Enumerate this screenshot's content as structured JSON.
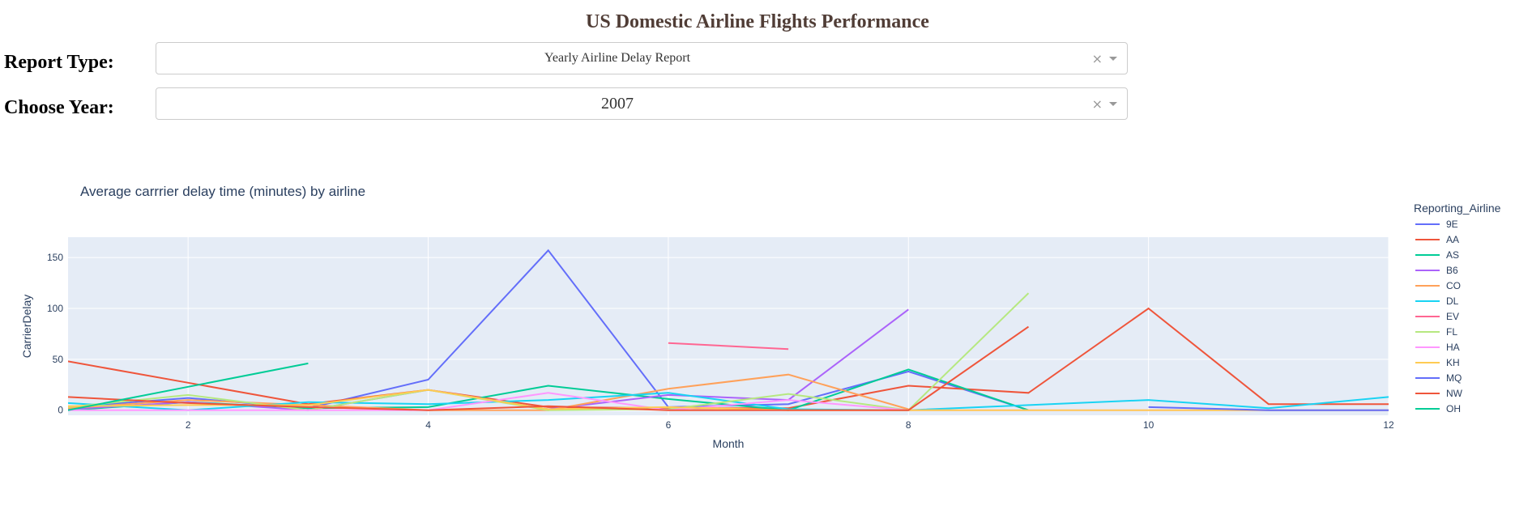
{
  "page": {
    "title": "US Domestic Airline Flights Performance"
  },
  "controls": {
    "report_type": {
      "label": "Report Type:",
      "value": "Yearly Airline Delay Report",
      "clear": "×"
    },
    "year": {
      "label": "Choose Year:",
      "value": "2007",
      "clear": "×"
    }
  },
  "chart_data": {
    "type": "line",
    "title": "Average carrrier delay time (minutes) by airline",
    "xlabel": "Month",
    "ylabel": "CarrierDelay",
    "xlim": [
      1,
      12
    ],
    "ylim": [
      -5,
      170
    ],
    "xticks": [
      2,
      4,
      6,
      8,
      10,
      12
    ],
    "yticks": [
      0,
      50,
      100,
      150
    ],
    "grid": true,
    "legend": {
      "title": "Reporting_Airline",
      "position": "right"
    },
    "series": [
      {
        "name": "9E",
        "color": "#636EFA",
        "points": [
          [
            1,
            3
          ],
          [
            2,
            12
          ],
          [
            3,
            2
          ],
          [
            4,
            30
          ],
          [
            5,
            157
          ],
          [
            6,
            3
          ],
          [
            7,
            6
          ],
          [
            8,
            38
          ],
          [
            9,
            0
          ]
        ]
      },
      {
        "name": "AA",
        "color": "#EF553B",
        "points": [
          [
            1,
            48
          ],
          [
            2,
            27
          ],
          [
            3,
            6
          ],
          [
            4,
            20
          ],
          [
            5,
            3
          ],
          [
            6,
            2
          ],
          [
            7,
            2
          ],
          [
            8,
            24
          ],
          [
            9,
            17
          ],
          [
            10,
            100
          ],
          [
            11,
            6
          ],
          [
            12,
            6
          ]
        ]
      },
      {
        "name": "AS",
        "color": "#00CC96",
        "points": [
          [
            1,
            0
          ],
          [
            2,
            8
          ],
          [
            3,
            2
          ],
          [
            4,
            3
          ],
          [
            5,
            24
          ],
          [
            6,
            11
          ],
          [
            7,
            0
          ],
          [
            8,
            40
          ],
          [
            9,
            0
          ]
        ]
      },
      {
        "name": "B6",
        "color": "#AB63FA",
        "points": [
          [
            1,
            1
          ],
          [
            2,
            8
          ],
          [
            3,
            0
          ],
          [
            4,
            20
          ],
          [
            5,
            1
          ],
          [
            6,
            15
          ],
          [
            7,
            10
          ],
          [
            8,
            99
          ]
        ]
      },
      {
        "name": "CO",
        "color": "#FFA15A",
        "points": [
          [
            1,
            2
          ],
          [
            2,
            10
          ],
          [
            3,
            5
          ],
          [
            4,
            0
          ],
          [
            5,
            0
          ],
          [
            6,
            21
          ],
          [
            7,
            35
          ],
          [
            8,
            1
          ]
        ]
      },
      {
        "name": "DL",
        "color": "#19D3F3",
        "points": [
          [
            1,
            7
          ],
          [
            2,
            0
          ],
          [
            3,
            8
          ],
          [
            4,
            6
          ],
          [
            5,
            10
          ],
          [
            6,
            17
          ],
          [
            7,
            1
          ],
          [
            8,
            0
          ],
          [
            9,
            5
          ],
          [
            10,
            10
          ],
          [
            11,
            2
          ],
          [
            12,
            13
          ]
        ]
      },
      {
        "name": "EV",
        "color": "#FF6692",
        "points": [
          [
            6,
            66
          ],
          [
            7,
            60
          ]
        ]
      },
      {
        "name": "FL",
        "color": "#B6E880",
        "points": [
          [
            1,
            3
          ],
          [
            2,
            15
          ],
          [
            3,
            0
          ],
          [
            4,
            20
          ],
          [
            5,
            0
          ],
          [
            6,
            1
          ],
          [
            7,
            16
          ],
          [
            8,
            0
          ],
          [
            9,
            115
          ]
        ]
      },
      {
        "name": "HA",
        "color": "#FF97FF",
        "points": [
          [
            1,
            0
          ],
          [
            2,
            0
          ],
          [
            3,
            0
          ],
          [
            4,
            0
          ],
          [
            5,
            17
          ],
          [
            6,
            0
          ],
          [
            7,
            10
          ],
          [
            8,
            0
          ],
          [
            9,
            0
          ],
          [
            10,
            0
          ],
          [
            11,
            0
          ],
          [
            12,
            0
          ]
        ]
      },
      {
        "name": "KH",
        "color": "#FECB52",
        "points": [
          [
            1,
            4
          ],
          [
            2,
            5
          ],
          [
            3,
            5
          ],
          [
            4,
            20
          ],
          [
            5,
            1
          ],
          [
            6,
            3
          ],
          [
            7,
            0
          ],
          [
            8,
            0
          ],
          [
            9,
            0
          ],
          [
            10,
            0
          ],
          [
            11,
            0
          ],
          [
            12,
            0
          ]
        ]
      },
      {
        "name": "MQ",
        "color": "#636EFA",
        "points": [
          [
            10,
            3
          ],
          [
            11,
            0
          ],
          [
            12,
            0
          ]
        ]
      },
      {
        "name": "NW",
        "color": "#EF553B",
        "points": [
          [
            1,
            13
          ],
          [
            2,
            7
          ],
          [
            3,
            3
          ],
          [
            4,
            0
          ],
          [
            5,
            4
          ],
          [
            6,
            0
          ],
          [
            7,
            0
          ],
          [
            8,
            0
          ],
          [
            9,
            82
          ]
        ]
      },
      {
        "name": "OH",
        "color": "#00CC96",
        "points": [
          [
            1,
            0
          ],
          [
            2,
            23
          ],
          [
            3,
            46
          ]
        ]
      }
    ]
  }
}
